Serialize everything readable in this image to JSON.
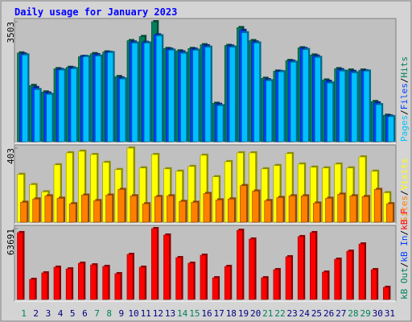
{
  "chart_data": [
    {
      "type": "bar",
      "title": "Daily usage for January 2023",
      "ylim": [
        0,
        3503
      ],
      "yticks": [
        3503
      ],
      "legend_separator": "/",
      "series": [
        {
          "name": "Hits",
          "color": "#00805c",
          "values": [
            2590,
            1640,
            1450,
            2130,
            2170,
            2480,
            2570,
            2620,
            1900,
            2950,
            3070,
            3503,
            2720,
            2650,
            2720,
            2830,
            1120,
            2810,
            3330,
            2950,
            1850,
            2060,
            2370,
            2740,
            2530,
            1800,
            2130,
            2090,
            2090,
            1170,
            770
          ]
        },
        {
          "name": "Files",
          "color": "#0040ff",
          "values": [
            2560,
            1580,
            1420,
            2110,
            2150,
            2490,
            2540,
            2610,
            1860,
            2910,
            2900,
            3120,
            2700,
            2620,
            2700,
            2800,
            1090,
            2790,
            3250,
            2910,
            1810,
            2050,
            2350,
            2720,
            2500,
            1760,
            2100,
            2050,
            2070,
            1130,
            750
          ]
        },
        {
          "name": "Pages",
          "color": "#00c0ff",
          "values": [
            2530,
            1520,
            1380,
            2090,
            2130,
            2480,
            2500,
            2600,
            1830,
            2880,
            2880,
            3090,
            2670,
            2580,
            2670,
            2760,
            1050,
            2760,
            3180,
            2880,
            1780,
            2040,
            2320,
            2690,
            2460,
            1710,
            2060,
            2010,
            2060,
            1080,
            730
          ]
        }
      ]
    },
    {
      "type": "bar",
      "ylim": [
        0,
        403
      ],
      "yticks": [
        403
      ],
      "legend_separator": "/",
      "series": [
        {
          "name": "Visits",
          "color": "#ffff00",
          "values": [
            260,
            204,
            165,
            312,
            377,
            386,
            368,
            325,
            286,
            403,
            295,
            368,
            290,
            277,
            303,
            364,
            247,
            329,
            377,
            377,
            290,
            308,
            373,
            316,
            299,
            295,
            316,
            295,
            355,
            277,
            160
          ]
        },
        {
          "name": "Sites",
          "color": "#ff8000",
          "values": [
            108,
            126,
            143,
            130,
            100,
            147,
            117,
            147,
            178,
            143,
            100,
            139,
            143,
            113,
            108,
            156,
            121,
            126,
            199,
            169,
            117,
            134,
            143,
            143,
            104,
            130,
            152,
            143,
            139,
            178,
            100
          ]
        }
      ]
    },
    {
      "type": "bar",
      "ylim": [
        0,
        63691
      ],
      "yticks": [
        63691
      ],
      "legend_separator": "/",
      "categories": [
        "1",
        "2",
        "3",
        "4",
        "5",
        "6",
        "7",
        "8",
        "9",
        "10",
        "11",
        "12",
        "13",
        "14",
        "15",
        "16",
        "17",
        "18",
        "19",
        "20",
        "21",
        "22",
        "23",
        "24",
        "25",
        "26",
        "27",
        "28",
        "29",
        "30",
        "31"
      ],
      "category_colors": [
        "#00805c",
        "#000080",
        "#000080",
        "#000080",
        "#000080",
        "#000080",
        "#00805c",
        "#00805c",
        "#000080",
        "#000080",
        "#000080",
        "#000080",
        "#000080",
        "#00805c",
        "#00805c",
        "#000080",
        "#000080",
        "#000080",
        "#000080",
        "#000080",
        "#00805c",
        "#00805c",
        "#000080",
        "#000080",
        "#000080",
        "#000080",
        "#000080",
        "#00805c",
        "#00805c",
        "#000080",
        "#000080"
      ],
      "series": [
        {
          "name": "kB F",
          "color": "#ff0000",
          "values": [
            60100,
            18100,
            23900,
            29000,
            27500,
            32600,
            31100,
            29700,
            23200,
            40500,
            29000,
            63691,
            57900,
            37600,
            32600,
            39800,
            19500,
            29700,
            62200,
            54300,
            19500,
            26800,
            38400,
            56500,
            60100,
            24600,
            36200,
            43400,
            49900,
            26800,
            10900
          ]
        },
        {
          "name": "kB In",
          "color": "#0040ff"
        },
        {
          "name": "kB Out",
          "color": "#00805c"
        }
      ]
    }
  ]
}
